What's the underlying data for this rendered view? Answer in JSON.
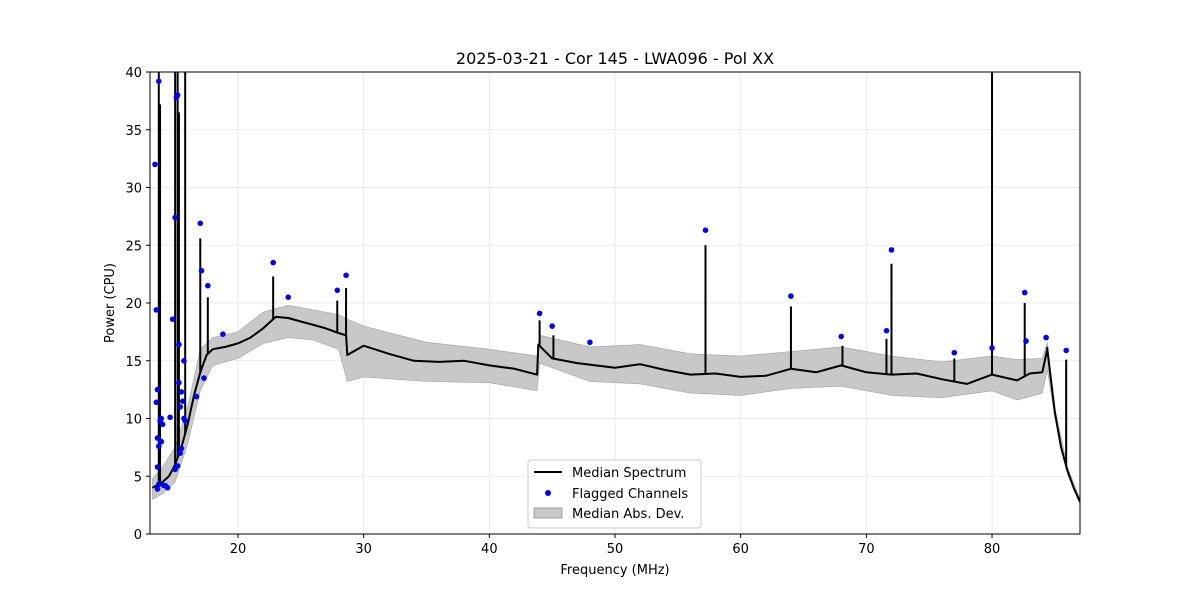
{
  "chart_data": {
    "type": "line",
    "title": "2025-03-21 - Cor 145 - LWA096 - Pol XX",
    "xlabel": "Frequency (MHz)",
    "ylabel": "Power (CPU)",
    "xlim": [
      13,
      87
    ],
    "ylim": [
      0,
      40
    ],
    "xticks": [
      20,
      30,
      40,
      50,
      60,
      70,
      80
    ],
    "yticks": [
      0,
      5,
      10,
      15,
      20,
      25,
      30,
      35,
      40
    ],
    "grid": true,
    "legend": {
      "position": "bottom-center",
      "entries": [
        "Median Spectrum",
        "Flagged Channels",
        "Median Abs. Dev."
      ]
    },
    "colors": {
      "line": "#000000",
      "points": "#0000ff",
      "band": "#c8c8c8",
      "band_edge": "#a0a0a0"
    },
    "series": [
      {
        "name": "Median Spectrum",
        "x": [
          13.2,
          13.5,
          14.0,
          14.5,
          15.0,
          15.5,
          16.0,
          16.5,
          17.0,
          17.5,
          18.0,
          19.0,
          20.0,
          21.0,
          22.0,
          22.5,
          23.0,
          24.0,
          25.0,
          26.0,
          27.0,
          28.0,
          28.6,
          28.7,
          30.0,
          32.0,
          34.0,
          36.0,
          38.0,
          40.0,
          42.0,
          43.8,
          43.9,
          45.0,
          47.0,
          50.0,
          52.0,
          54.0,
          56.0,
          58.0,
          60.0,
          62.0,
          64.0,
          66.0,
          68.0,
          70.0,
          72.0,
          74.0,
          76.0,
          78.0,
          80.0,
          82.0,
          83.0,
          84.0,
          84.4,
          85.0,
          85.5,
          86.0,
          86.5,
          87.0
        ],
        "values": [
          4.0,
          4.2,
          4.5,
          5.0,
          6.0,
          7.5,
          9.5,
          12.0,
          14.0,
          15.5,
          16.0,
          16.2,
          16.5,
          17.0,
          17.8,
          18.3,
          18.8,
          18.7,
          18.4,
          18.1,
          17.8,
          17.4,
          17.2,
          15.5,
          16.3,
          15.6,
          15.0,
          14.9,
          15.0,
          14.6,
          14.3,
          13.8,
          16.4,
          15.2,
          14.8,
          14.4,
          14.7,
          14.2,
          13.8,
          13.9,
          13.6,
          13.7,
          14.3,
          14.0,
          14.6,
          14.0,
          13.8,
          13.9,
          13.4,
          13.0,
          13.8,
          13.3,
          13.9,
          14.0,
          16.0,
          10.5,
          7.5,
          5.5,
          4.0,
          2.8
        ]
      },
      {
        "name": "Median Abs. Dev.",
        "x": [
          13.2,
          14.0,
          15.0,
          16.0,
          17.0,
          18.0,
          20.0,
          22.0,
          24.0,
          26.0,
          28.0,
          28.7,
          30.0,
          35.0,
          40.0,
          43.8,
          44.0,
          48.0,
          52.0,
          56.0,
          60.0,
          64.0,
          68.0,
          72.0,
          76.0,
          80.0,
          82.0,
          84.0,
          84.4,
          85.0,
          86.0,
          87.0
        ],
        "upper": [
          4.8,
          5.8,
          7.5,
          11.0,
          16.0,
          17.0,
          17.5,
          19.2,
          19.8,
          19.4,
          19.0,
          18.6,
          18.0,
          16.6,
          16.0,
          15.4,
          17.2,
          16.2,
          16.4,
          15.6,
          15.4,
          15.8,
          16.2,
          15.4,
          14.9,
          15.4,
          15.1,
          15.2,
          16.6,
          10.9,
          5.8,
          3.0
        ],
        "lower": [
          3.0,
          3.5,
          4.5,
          7.8,
          12.4,
          14.6,
          15.2,
          16.5,
          17.0,
          16.8,
          16.0,
          13.2,
          13.6,
          13.2,
          13.1,
          12.4,
          14.8,
          13.2,
          13.0,
          12.2,
          12.0,
          12.6,
          12.8,
          12.0,
          11.8,
          12.4,
          11.6,
          12.2,
          14.2,
          10.1,
          5.2,
          2.6
        ]
      }
    ],
    "spikes": [
      {
        "x": 13.7,
        "height": 40
      },
      {
        "x": 13.8,
        "height": 37.2
      },
      {
        "x": 15.0,
        "height": 40
      },
      {
        "x": 15.2,
        "height": 40
      },
      {
        "x": 15.3,
        "height": 36.5
      },
      {
        "x": 15.8,
        "height": 40
      },
      {
        "x": 17.0,
        "height": 25.6
      },
      {
        "x": 17.6,
        "height": 20.5
      },
      {
        "x": 22.8,
        "height": 22.3
      },
      {
        "x": 27.9,
        "height": 20.2
      },
      {
        "x": 28.6,
        "height": 21.3
      },
      {
        "x": 44.0,
        "height": 18.5
      },
      {
        "x": 45.1,
        "height": 17.2
      },
      {
        "x": 57.2,
        "height": 25.0
      },
      {
        "x": 64.0,
        "height": 19.7
      },
      {
        "x": 68.1,
        "height": 16.3
      },
      {
        "x": 71.6,
        "height": 16.9
      },
      {
        "x": 72.0,
        "height": 23.4
      },
      {
        "x": 77.0,
        "height": 15.2
      },
      {
        "x": 80.0,
        "height": 40
      },
      {
        "x": 82.6,
        "height": 20.0
      },
      {
        "x": 84.4,
        "height": 16.2
      },
      {
        "x": 85.9,
        "height": 15.1
      }
    ],
    "flagged": {
      "x": [
        13.4,
        13.5,
        13.6,
        13.7,
        13.8,
        13.9,
        14.0,
        13.5,
        13.6,
        13.7,
        13.9,
        14.2,
        14.6,
        14.8,
        15.0,
        15.1,
        15.2,
        15.3,
        15.4,
        15.5,
        15.6,
        15.7,
        15.8,
        16.7,
        17.0,
        17.1,
        17.3,
        17.6,
        18.8,
        22.8,
        24.0,
        27.9,
        28.6,
        44.0,
        45.0,
        48.0,
        57.2,
        64.0,
        68.0,
        71.6,
        72.0,
        77.0,
        80.0,
        82.6,
        82.7,
        84.3,
        85.9,
        13.6,
        13.7,
        14.1,
        15.2,
        15.0,
        15.3,
        15.5,
        13.6,
        14.4,
        15.4,
        15.7
      ],
      "values": [
        32.0,
        19.4,
        12.5,
        39.2,
        9.8,
        10.0,
        9.5,
        11.4,
        8.3,
        7.6,
        8.0,
        4.2,
        10.1,
        18.6,
        27.4,
        37.8,
        38.0,
        16.4,
        11.0,
        12.3,
        11.5,
        15.0,
        9.8,
        11.9,
        26.9,
        22.8,
        13.5,
        21.5,
        17.3,
        23.5,
        20.5,
        21.1,
        22.4,
        19.1,
        18.0,
        16.6,
        26.3,
        20.6,
        17.1,
        17.6,
        24.6,
        15.7,
        16.1,
        20.9,
        16.7,
        17.0,
        15.9,
        5.8,
        4.3,
        4.2,
        5.9,
        5.6,
        13.1,
        7.4,
        3.9,
        4.0,
        7.0,
        10.0
      ]
    }
  }
}
